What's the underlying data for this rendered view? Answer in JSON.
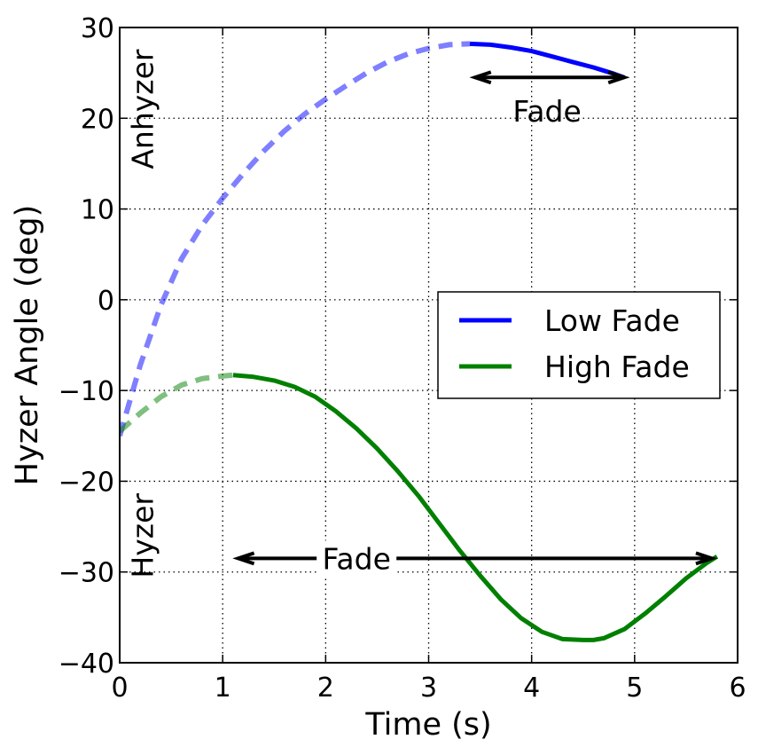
{
  "chart_data": {
    "type": "line",
    "title": "",
    "xlabel": "Time (s)",
    "ylabel": "Hyzer Angle (deg)",
    "xlim": [
      0,
      6
    ],
    "ylim": [
      -40,
      30
    ],
    "grid": true,
    "x_ticks": [
      0,
      1,
      2,
      3,
      4,
      5,
      6
    ],
    "y_ticks": [
      -40,
      -30,
      -20,
      -10,
      0,
      10,
      20,
      30
    ],
    "x_tick_labels": [
      "0",
      "1",
      "2",
      "3",
      "4",
      "5",
      "6"
    ],
    "y_tick_labels": [
      "−40",
      "−30",
      "−20",
      "−10",
      "0",
      "10",
      "20",
      "30"
    ],
    "legend": {
      "placement": "center-right",
      "entries": [
        "Low Fade",
        "High Fade"
      ]
    },
    "series": [
      {
        "name": "Low Fade",
        "color": "#0000ff",
        "dashed_part": {
          "x": [
            0,
            0.2,
            0.4,
            0.6,
            0.8,
            1.0,
            1.2,
            1.4,
            1.6,
            1.8,
            2.0,
            2.2,
            2.4,
            2.6,
            2.8,
            3.0,
            3.2,
            3.4
          ],
          "y": [
            -15,
            -7.2,
            -0.6,
            4.5,
            8.2,
            11.2,
            13.9,
            16.4,
            18.6,
            20.5,
            22.1,
            23.6,
            25.0,
            26.2,
            27.1,
            27.7,
            28.1,
            28.2
          ]
        },
        "solid_part": {
          "x": [
            3.4,
            3.6,
            3.8,
            4.0,
            4.2,
            4.4,
            4.6,
            4.8,
            4.9
          ],
          "y": [
            28.2,
            28.1,
            27.8,
            27.4,
            26.8,
            26.2,
            25.6,
            24.9,
            24.5
          ]
        }
      },
      {
        "name": "High Fade",
        "color": "#008000",
        "dashed_part": {
          "x": [
            0,
            0.2,
            0.4,
            0.6,
            0.8,
            1.0,
            1.1
          ],
          "y": [
            -14.5,
            -12.5,
            -10.7,
            -9.4,
            -8.7,
            -8.4,
            -8.3
          ]
        },
        "solid_part": {
          "x": [
            1.1,
            1.3,
            1.5,
            1.7,
            1.9,
            2.1,
            2.3,
            2.5,
            2.7,
            2.9,
            3.1,
            3.3,
            3.5,
            3.7,
            3.9,
            4.1,
            4.3,
            4.5,
            4.6,
            4.7,
            4.9,
            5.1,
            5.3,
            5.5,
            5.7,
            5.8
          ],
          "y": [
            -8.3,
            -8.5,
            -8.9,
            -9.6,
            -10.7,
            -12.3,
            -14.2,
            -16.4,
            -18.9,
            -21.6,
            -24.6,
            -27.6,
            -30.4,
            -33.0,
            -35.1,
            -36.6,
            -37.4,
            -37.5,
            -37.5,
            -37.3,
            -36.3,
            -34.6,
            -32.7,
            -30.7,
            -29.0,
            -28.3
          ]
        }
      }
    ],
    "annotations": [
      {
        "text": "Fade",
        "arrow_from": [
          3.45,
          24.5
        ],
        "arrow_to": [
          4.9,
          24.5
        ],
        "text_at": [
          4.15,
          20.8
        ]
      },
      {
        "text": "Fade",
        "arrow_from": [
          1.15,
          -28.5
        ],
        "arrow_to": [
          5.75,
          -28.5
        ],
        "text_at": [
          2.3,
          -28.5
        ]
      }
    ],
    "region_labels": [
      {
        "text": "Anhyzer",
        "at": [
          0.22,
          21
        ]
      },
      {
        "text": "Hyzer",
        "at": [
          0.22,
          -26
        ]
      }
    ]
  }
}
